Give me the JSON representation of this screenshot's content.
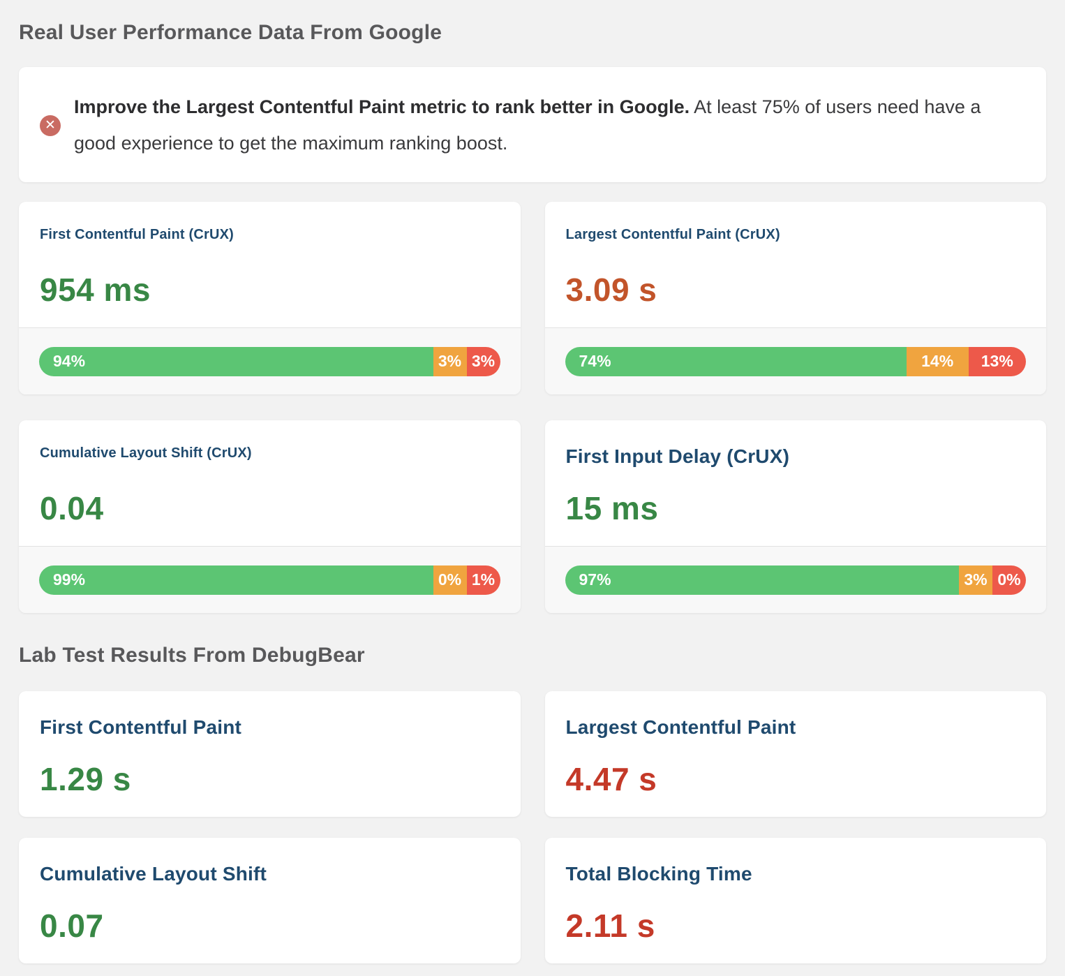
{
  "sections": {
    "crux_title": "Real User Performance Data From Google",
    "lab_title": "Lab Test Results From DebugBear"
  },
  "alert": {
    "icon": "error-x-circle-icon",
    "icon_glyph": "✕",
    "icon_color": "#c96b62",
    "message_bold": "Improve the Largest Contentful Paint metric to rank better in Google.",
    "message_rest": " At least 75% of users need have a good experience to get the maximum ranking boost."
  },
  "colors": {
    "page_bg": "#f2f2f2",
    "card_title": "#1f4a6e",
    "value_good": "#388745",
    "value_needs_improvement": "#c2542a",
    "value_poor": "#c43928",
    "bar_good": "#5cc573",
    "bar_needs_improvement": "#f0a43f",
    "bar_poor": "#ed594a"
  },
  "crux_cards": [
    {
      "title": "First Contentful Paint (CrUX)",
      "value": "954 ms",
      "status": "good",
      "bar": {
        "good_pct": 94,
        "needs_improvement_pct": 3,
        "poor_pct": 3,
        "good_label": "94%",
        "needs_improvement_label": "3%",
        "poor_label": "3%"
      }
    },
    {
      "title": "Largest Contentful Paint (CrUX)",
      "value": "3.09 s",
      "status": "needs-improvement",
      "bar": {
        "good_pct": 74,
        "needs_improvement_pct": 14,
        "poor_pct": 13,
        "good_label": "74%",
        "needs_improvement_label": "14%",
        "poor_label": "13%"
      }
    },
    {
      "title": "Cumulative Layout Shift (CrUX)",
      "value": "0.04",
      "status": "good",
      "bar": {
        "good_pct": 99,
        "needs_improvement_pct": 0,
        "poor_pct": 1,
        "good_label": "99%",
        "needs_improvement_label": "0%",
        "poor_label": "1%"
      }
    },
    {
      "title": "First Input Delay (CrUX)",
      "value": "15 ms",
      "status": "good",
      "bar": {
        "good_pct": 97,
        "needs_improvement_pct": 3,
        "poor_pct": 0,
        "good_label": "97%",
        "needs_improvement_label": "3%",
        "poor_label": "0%"
      }
    }
  ],
  "lab_cards": [
    {
      "title": "First Contentful Paint",
      "value": "1.29 s",
      "status": "good"
    },
    {
      "title": "Largest Contentful Paint",
      "value": "4.47 s",
      "status": "poor"
    },
    {
      "title": "Cumulative Layout Shift",
      "value": "0.07",
      "status": "good"
    },
    {
      "title": "Total Blocking Time",
      "value": "2.11 s",
      "status": "poor"
    }
  ]
}
